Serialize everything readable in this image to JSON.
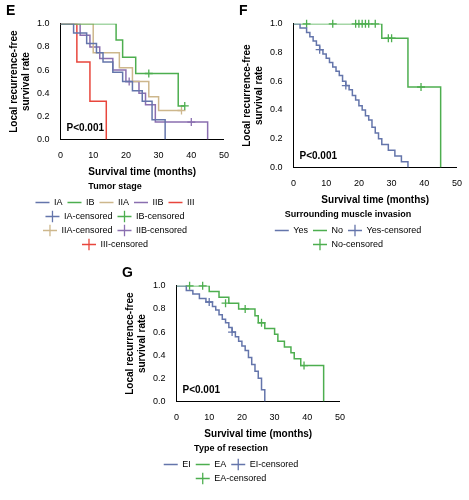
{
  "chart_data": [
    {
      "type": "line",
      "title": "E",
      "x_label": "Survival time (months)",
      "y_label": "Local recurrence-free survival rate",
      "annotations": [
        "P<0.001"
      ],
      "legend_title": "Tumor stage",
      "legend": "bottom",
      "grid": false,
      "xlim": [
        0,
        50
      ],
      "xticks": [
        0,
        10,
        20,
        30,
        40,
        50
      ],
      "ylim": [
        0,
        1
      ],
      "yticks": [
        {
          "value": 0,
          "label": "0.0"
        },
        0.2,
        0.4,
        0.6,
        0.8,
        {
          "value": 1,
          "label": "1.0"
        }
      ],
      "series": [
        {
          "name": "IA",
          "color": "#6475ab",
          "type": "line",
          "line_style": "step",
          "x": [
            0,
            4,
            8,
            11,
            13,
            16,
            19,
            22,
            25,
            28,
            32
          ],
          "values": [
            1,
            0.92,
            0.83,
            0.75,
            0.67,
            0.58,
            0.5,
            0.42,
            0.33,
            0.17,
            0
          ]
        },
        {
          "name": "IB",
          "color": "#4dae4f",
          "type": "line",
          "line_style": "step",
          "x": [
            0,
            17,
            19,
            23,
            36,
            38
          ],
          "values": [
            1,
            0.86,
            0.71,
            0.57,
            0.29,
            0.29
          ]
        },
        {
          "name": "IIA",
          "color": "#cdb78c",
          "type": "line",
          "line_style": "step",
          "x": [
            0,
            10,
            18,
            22,
            27,
            30,
            37
          ],
          "values": [
            1,
            0.75,
            0.62,
            0.5,
            0.37,
            0.25,
            0.25
          ]
        },
        {
          "name": "IIB",
          "color": "#8a6fb0",
          "type": "line",
          "line_style": "step",
          "x": [
            0,
            6,
            9,
            12,
            16,
            20,
            24,
            26,
            29,
            45
          ],
          "values": [
            1,
            0.9,
            0.8,
            0.7,
            0.6,
            0.5,
            0.4,
            0.3,
            0.15,
            0
          ]
        },
        {
          "name": "III",
          "color": "#e8463c",
          "type": "line",
          "line_style": "step",
          "x": [
            0,
            5,
            9,
            14
          ],
          "values": [
            1,
            0.67,
            0.33,
            0
          ]
        },
        {
          "name": "IA-censored",
          "color": "#6475ab",
          "type": "scatter",
          "marker": "cross",
          "x": [],
          "values": []
        },
        {
          "name": "IB-censored",
          "color": "#4dae4f",
          "type": "scatter",
          "marker": "cross",
          "x": [
            27,
            38
          ],
          "values": [
            0.57,
            0.29
          ]
        },
        {
          "name": "IIA-censored",
          "color": "#cdb78c",
          "type": "scatter",
          "marker": "cross",
          "x": [
            37
          ],
          "values": [
            0.25
          ]
        },
        {
          "name": "IIB-censored",
          "color": "#8a6fb0",
          "type": "scatter",
          "marker": "cross",
          "x": [
            21,
            40
          ],
          "values": [
            0.5,
            0.15
          ]
        },
        {
          "name": "III-censored",
          "color": "#e8463c",
          "type": "scatter",
          "marker": "cross",
          "x": [],
          "values": []
        }
      ]
    },
    {
      "type": "line",
      "title": "F",
      "x_label": "Survival time (months)",
      "y_label": "Local recurrence-free survival rate",
      "annotations": [
        "P<0.001"
      ],
      "legend_title": "Surrounding muscle invasion",
      "legend": "bottom",
      "grid": false,
      "xlim": [
        0,
        50
      ],
      "xticks": [
        0,
        10,
        20,
        30,
        40,
        50
      ],
      "ylim": [
        0,
        1
      ],
      "yticks": [
        {
          "value": 0,
          "label": "0.0"
        },
        0.2,
        0.4,
        0.6,
        0.8,
        {
          "value": 1,
          "label": "1.0"
        }
      ],
      "series": [
        {
          "name": "Yes",
          "color": "#6475ab",
          "type": "line",
          "line_style": "step",
          "x": [
            0,
            2,
            4,
            5,
            6,
            7,
            8,
            9,
            10,
            11,
            12,
            13,
            14,
            15,
            16,
            17,
            18,
            19,
            20,
            21,
            22,
            23,
            24,
            25,
            26,
            27,
            29,
            31,
            33,
            35
          ],
          "values": [
            1,
            0.97,
            0.94,
            0.91,
            0.88,
            0.85,
            0.82,
            0.79,
            0.76,
            0.73,
            0.7,
            0.67,
            0.64,
            0.6,
            0.57,
            0.54,
            0.5,
            0.47,
            0.43,
            0.4,
            0.36,
            0.33,
            0.28,
            0.24,
            0.2,
            0.16,
            0.12,
            0.08,
            0.04,
            0
          ]
        },
        {
          "name": "No",
          "color": "#4dae4f",
          "type": "line",
          "line_style": "step",
          "x": [
            0,
            27,
            35,
            45
          ],
          "values": [
            1,
            0.9,
            0.56,
            0
          ]
        },
        {
          "name": "Yes-censored",
          "color": "#6475ab",
          "type": "scatter",
          "marker": "cross",
          "x": [
            8,
            16
          ],
          "values": [
            0.82,
            0.57
          ]
        },
        {
          "name": "No-censored",
          "color": "#4dae4f",
          "type": "scatter",
          "marker": "cross",
          "x": [
            4,
            12,
            19,
            20,
            21,
            22,
            23,
            25,
            29,
            30,
            39
          ],
          "values": [
            1,
            1,
            1,
            1,
            1,
            1,
            1,
            1,
            0.9,
            0.9,
            0.56
          ]
        }
      ]
    },
    {
      "type": "line",
      "title": "G",
      "x_label": "Survival time (months)",
      "y_label": "Local recurrence-free survival rate",
      "annotations": [
        "P<0.001"
      ],
      "legend_title": "Type of resection",
      "legend": "bottom",
      "grid": false,
      "xlim": [
        0,
        50
      ],
      "xticks": [
        0,
        10,
        20,
        30,
        40,
        50
      ],
      "ylim": [
        0,
        1
      ],
      "yticks": [
        {
          "value": 0,
          "label": "0.0"
        },
        0.2,
        0.4,
        0.6,
        0.8,
        {
          "value": 1,
          "label": "1.0"
        }
      ],
      "series": [
        {
          "name": "EI",
          "color": "#6475ab",
          "type": "line",
          "line_style": "step",
          "x": [
            0,
            3,
            5,
            7,
            9,
            11,
            12,
            13,
            14,
            15,
            16,
            17,
            18,
            19,
            20,
            21,
            22,
            23,
            24,
            25,
            26,
            27
          ],
          "values": [
            1,
            0.96,
            0.93,
            0.89,
            0.86,
            0.82,
            0.79,
            0.75,
            0.71,
            0.68,
            0.64,
            0.6,
            0.56,
            0.52,
            0.48,
            0.44,
            0.38,
            0.32,
            0.26,
            0.2,
            0.1,
            0
          ]
        },
        {
          "name": "EA",
          "color": "#4dae4f",
          "type": "line",
          "line_style": "step",
          "x": [
            0,
            10,
            13,
            16,
            19,
            24,
            25,
            27,
            30,
            31,
            33,
            35,
            36,
            38,
            45
          ],
          "values": [
            1,
            0.95,
            0.9,
            0.85,
            0.8,
            0.74,
            0.68,
            0.63,
            0.58,
            0.52,
            0.47,
            0.42,
            0.37,
            0.31,
            0
          ]
        },
        {
          "name": "EI-censored",
          "color": "#6475ab",
          "type": "scatter",
          "marker": "cross",
          "x": [
            10,
            17
          ],
          "values": [
            0.86,
            0.6
          ]
        },
        {
          "name": "EA-censored",
          "color": "#4dae4f",
          "type": "scatter",
          "marker": "cross",
          "x": [
            4,
            8,
            15,
            21,
            26,
            39
          ],
          "values": [
            1,
            1,
            0.85,
            0.8,
            0.68,
            0.31
          ]
        }
      ]
    }
  ]
}
